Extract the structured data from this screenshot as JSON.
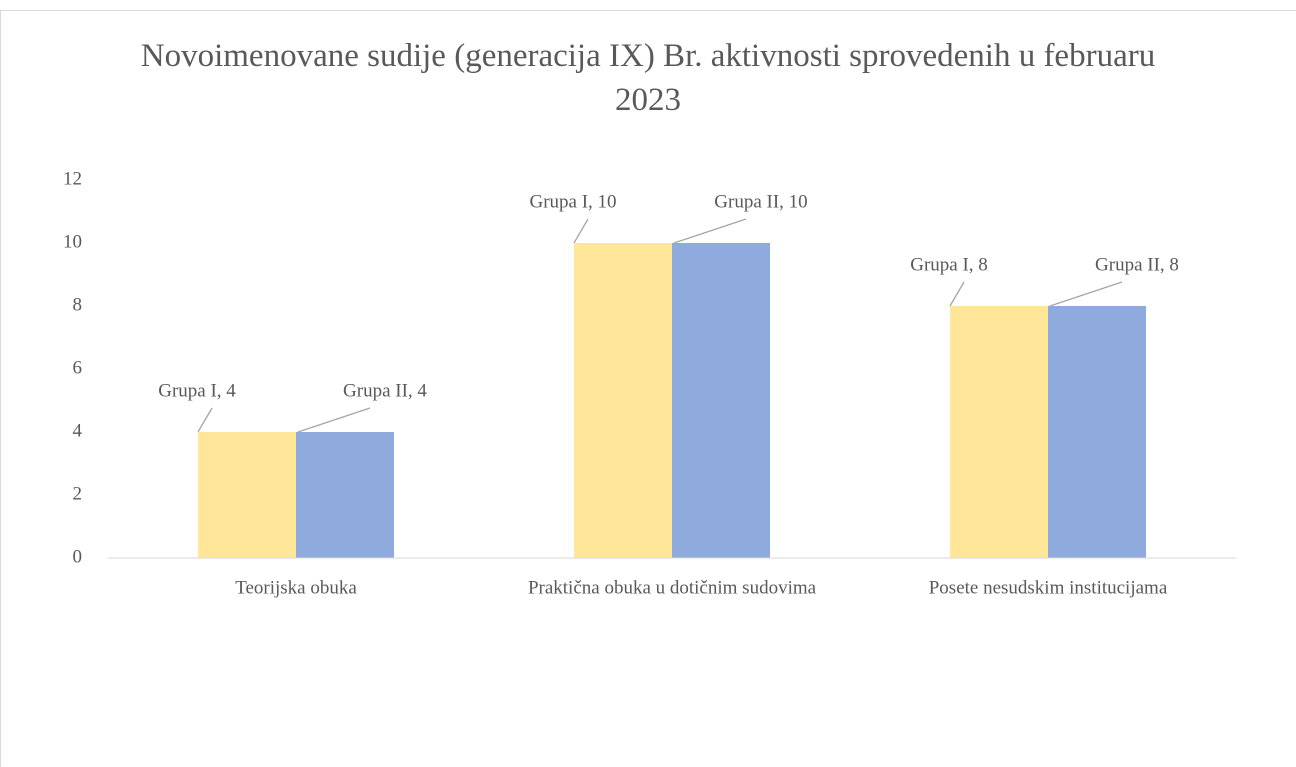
{
  "chart_data": {
    "type": "bar",
    "title": "Novoimenovane sudije (generacija IX) Br. aktivnosti sprovedenih u februaru 2023",
    "categories": [
      "Teorijska obuka",
      "Praktična obuka u dotičnim sudovima",
      "Posete nesudskim institucijama"
    ],
    "series": [
      {
        "name": "Grupa I",
        "color": "#ffe699",
        "values": [
          4,
          10,
          8
        ],
        "value_labels": [
          "Grupa I, 4",
          "Grupa I, 10",
          "Grupa I, 8"
        ]
      },
      {
        "name": "Grupa II",
        "color": "#8faadc",
        "values": [
          4,
          10,
          8
        ],
        "value_labels": [
          "Grupa II, 4",
          "Grupa II, 10",
          "Grupa II, 8"
        ]
      }
    ],
    "ylim": [
      0,
      12
    ],
    "yticks": [
      0,
      2,
      4,
      6,
      8,
      10,
      12
    ],
    "grid": false
  }
}
